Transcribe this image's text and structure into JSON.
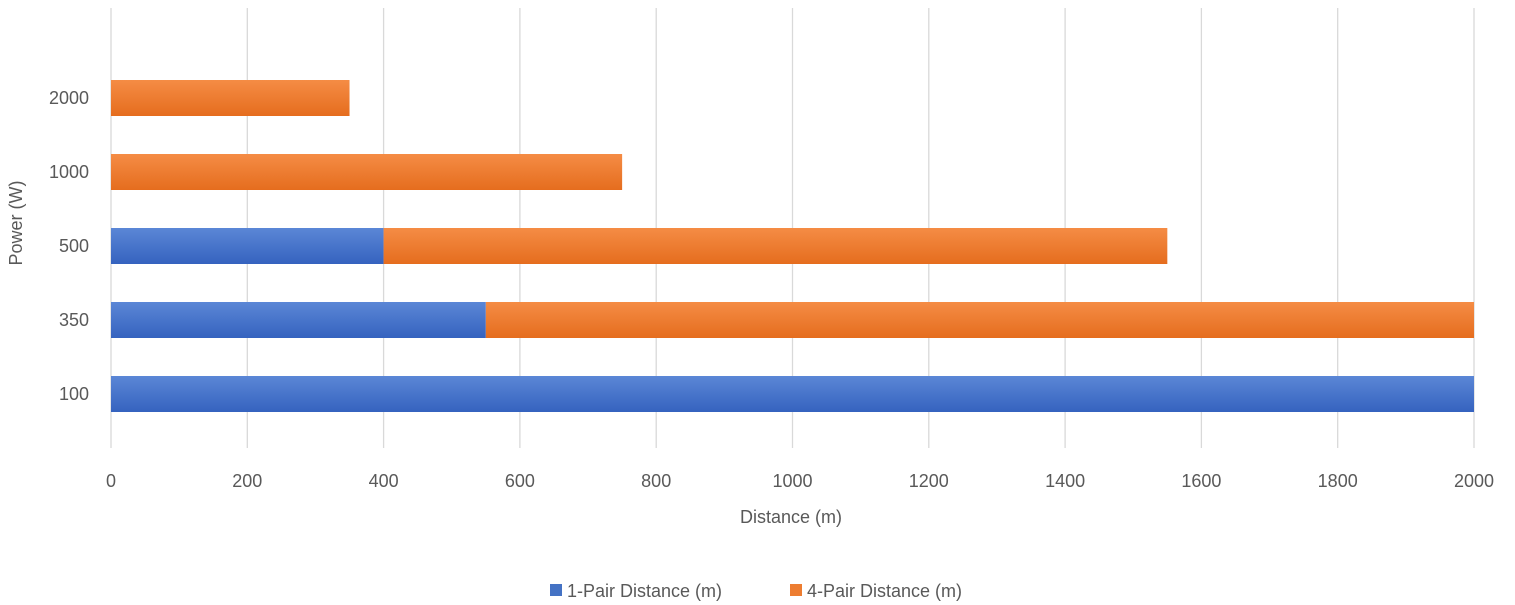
{
  "chart_data": {
    "type": "bar",
    "orientation": "horizontal",
    "stacked": true,
    "categories": [
      "2000",
      "1000",
      "500",
      "350",
      "100"
    ],
    "series": [
      {
        "name": "1-Pair Distance (m)",
        "color": "#4472C4",
        "values": [
          0,
          0,
          400,
          550,
          2000
        ]
      },
      {
        "name": "4-Pair Distance (m)",
        "color": "#ED7D31",
        "values": [
          350,
          750,
          1150,
          1450,
          0
        ]
      }
    ],
    "title": "",
    "xlabel": "Distance (m)",
    "ylabel": "Power (W)",
    "xlim": [
      0,
      2000
    ],
    "x_ticks": [
      "0",
      "200",
      "400",
      "600",
      "800",
      "1000",
      "1200",
      "1400",
      "1600",
      "1800",
      "2000"
    ],
    "grid": "vertical",
    "legend_position": "bottom"
  }
}
